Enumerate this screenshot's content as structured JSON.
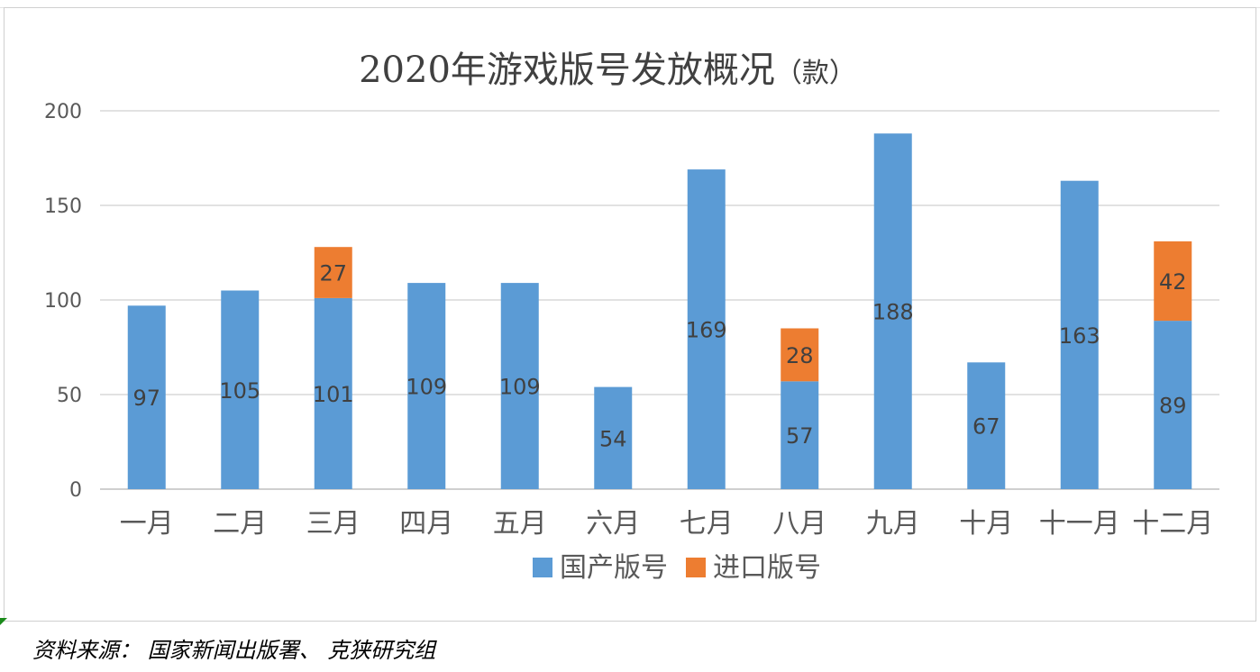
{
  "chart_data": {
    "type": "bar",
    "stacked": true,
    "title": "2020年游戏版号发放概况",
    "title_unit": "（款）",
    "categories": [
      "一月",
      "二月",
      "三月",
      "四月",
      "五月",
      "六月",
      "七月",
      "八月",
      "九月",
      "十月",
      "十一月",
      "十二月"
    ],
    "series": [
      {
        "name": "国产版号",
        "color": "#5b9bd5",
        "values": [
          97,
          105,
          101,
          109,
          109,
          54,
          169,
          57,
          188,
          67,
          163,
          89
        ]
      },
      {
        "name": "进口版号",
        "color": "#ed7d31",
        "values": [
          0,
          0,
          27,
          0,
          0,
          0,
          0,
          28,
          0,
          0,
          0,
          42
        ]
      }
    ],
    "data_labels": {
      "国产版号": [
        "97",
        "105",
        "101",
        "109",
        "109",
        "54",
        "169",
        "57",
        "188",
        "67",
        "163",
        "89"
      ],
      "进口版号": [
        "",
        "",
        "27",
        "",
        "",
        "",
        "",
        "28",
        "",
        "",
        "",
        "42"
      ]
    },
    "ylim": [
      0,
      200
    ],
    "yticks": [
      0,
      50,
      100,
      150,
      200
    ],
    "grid": true,
    "legend_position": "bottom",
    "xlabel": "",
    "ylabel": ""
  },
  "source_note": "资料来源： 国家新闻出版署、 克狭研究组"
}
